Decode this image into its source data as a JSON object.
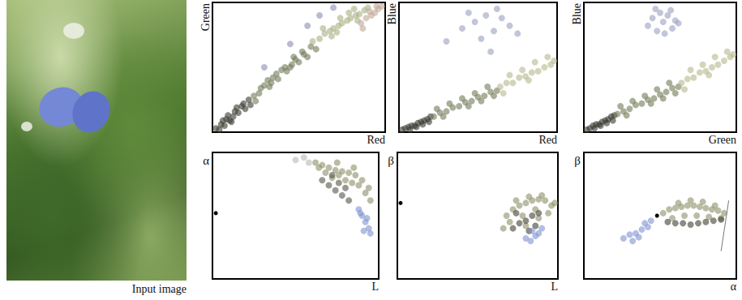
{
  "image": {
    "caption": "Input image"
  },
  "chart_data": [
    {
      "type": "scatter",
      "x_label": "Red",
      "y_label": "Green",
      "xlim": [
        0,
        100
      ],
      "ylim": [
        0,
        100
      ],
      "tick_labels": false,
      "grid": false,
      "series": [
        {
          "color": "#3b3b32",
          "x": [
            2,
            4,
            5,
            7,
            8,
            10,
            12,
            13,
            15,
            17,
            19,
            21,
            6,
            9,
            11,
            14,
            18,
            22
          ],
          "values": [
            3,
            2,
            6,
            5,
            10,
            9,
            12,
            16,
            15,
            20,
            18,
            25,
            9,
            13,
            8,
            19,
            22,
            21
          ]
        },
        {
          "color": "#6f7a55",
          "x": [
            24,
            27,
            30,
            33,
            35,
            38,
            40,
            43,
            46,
            48,
            50,
            53,
            55,
            28,
            32,
            37,
            42,
            47,
            52,
            57,
            60,
            25,
            34,
            45
          ],
          "values": [
            28,
            30,
            36,
            35,
            42,
            41,
            48,
            47,
            52,
            56,
            54,
            60,
            58,
            34,
            40,
            45,
            50,
            58,
            62,
            66,
            64,
            24,
            38,
            50
          ]
        },
        {
          "color": "#a9b084",
          "x": [
            58,
            62,
            65,
            68,
            70,
            73,
            75,
            78,
            80,
            83,
            85,
            88,
            64,
            69,
            74,
            79,
            84,
            90,
            72,
            82
          ],
          "values": [
            70,
            72,
            76,
            78,
            80,
            82,
            84,
            86,
            88,
            90,
            91,
            94,
            80,
            74,
            88,
            92,
            86,
            96,
            77,
            95
          ]
        },
        {
          "color": "#c2a696",
          "x": [
            86,
            89,
            92,
            94,
            96,
            91,
            95,
            98,
            87
          ],
          "values": [
            84,
            88,
            90,
            92,
            95,
            93,
            97,
            97,
            80
          ]
        },
        {
          "color": "#8a90b0",
          "x": [
            30,
            45,
            55,
            62,
            70
          ],
          "values": [
            50,
            68,
            82,
            90,
            96
          ]
        }
      ]
    },
    {
      "type": "scatter",
      "x_label": "Red",
      "y_label": "Blue",
      "xlim": [
        0,
        100
      ],
      "ylim": [
        0,
        100
      ],
      "tick_labels": false,
      "grid": false,
      "series": [
        {
          "color": "#3b3b32",
          "x": [
            2,
            4,
            6,
            8,
            10,
            12,
            14,
            16,
            18,
            20,
            7,
            11,
            15,
            19
          ],
          "values": [
            2,
            3,
            4,
            5,
            5,
            7,
            8,
            9,
            10,
            12,
            2,
            4,
            6,
            8
          ]
        },
        {
          "color": "#6f7a55",
          "x": [
            22,
            26,
            30,
            34,
            38,
            42,
            46,
            50,
            54,
            58,
            62,
            24,
            32,
            40,
            48,
            56,
            28,
            44,
            52,
            60
          ],
          "values": [
            12,
            15,
            16,
            19,
            20,
            23,
            24,
            27,
            28,
            31,
            32,
            18,
            22,
            26,
            30,
            35,
            12,
            20,
            24,
            28
          ]
        },
        {
          "color": "#b5b88c",
          "x": [
            64,
            68,
            72,
            76,
            80,
            84,
            88,
            92,
            96,
            70,
            78,
            86,
            94,
            66,
            82,
            98
          ],
          "values": [
            35,
            38,
            38,
            42,
            43,
            46,
            47,
            50,
            52,
            44,
            48,
            54,
            58,
            30,
            40,
            55
          ]
        },
        {
          "color": "#9aa0c0",
          "x": [
            30,
            40,
            48,
            55,
            60,
            65,
            70,
            52,
            44,
            62,
            75,
            58
          ],
          "values": [
            70,
            80,
            85,
            90,
            78,
            88,
            82,
            72,
            92,
            95,
            76,
            62
          ]
        }
      ]
    },
    {
      "type": "scatter",
      "x_label": "Green",
      "y_label": "Blue",
      "xlim": [
        0,
        100
      ],
      "ylim": [
        0,
        100
      ],
      "tick_labels": false,
      "grid": false,
      "series": [
        {
          "color": "#3b3b32",
          "x": [
            2,
            4,
            6,
            8,
            10,
            12,
            14,
            16,
            18,
            20,
            7,
            11,
            15,
            19
          ],
          "values": [
            2,
            3,
            5,
            6,
            6,
            8,
            9,
            10,
            12,
            13,
            3,
            5,
            7,
            9
          ]
        },
        {
          "color": "#6f7a55",
          "x": [
            22,
            26,
            30,
            34,
            38,
            42,
            46,
            50,
            54,
            58,
            62,
            24,
            32,
            40,
            48,
            56,
            28,
            44,
            52,
            60
          ],
          "values": [
            14,
            16,
            18,
            21,
            22,
            25,
            26,
            29,
            31,
            34,
            35,
            20,
            24,
            28,
            33,
            38,
            13,
            22,
            26,
            30
          ]
        },
        {
          "color": "#b5b88c",
          "x": [
            64,
            68,
            72,
            76,
            80,
            84,
            88,
            92,
            96,
            70,
            78,
            86,
            94,
            66,
            82,
            98
          ],
          "values": [
            38,
            41,
            42,
            46,
            47,
            50,
            52,
            55,
            58,
            48,
            52,
            58,
            62,
            33,
            44,
            60
          ]
        },
        {
          "color": "#9aa0c0",
          "x": [
            42,
            45,
            48,
            50,
            52,
            55,
            58,
            60,
            47,
            53,
            57,
            62
          ],
          "values": [
            82,
            88,
            78,
            92,
            85,
            90,
            80,
            86,
            95,
            76,
            94,
            84
          ]
        }
      ]
    },
    {
      "type": "scatter",
      "x_label": "L",
      "y_label": "α",
      "xlim": [
        0,
        100
      ],
      "ylim": [
        0,
        100
      ],
      "tick_labels": false,
      "grid": false,
      "series": [
        {
          "color": "#8c9068",
          "x": [
            62,
            66,
            70,
            74,
            78,
            82,
            86,
            90,
            94,
            72,
            80,
            88,
            68,
            76,
            84,
            92,
            64,
            75,
            85,
            95
          ],
          "values": [
            92,
            90,
            88,
            86,
            85,
            84,
            82,
            78,
            72,
            80,
            78,
            74,
            84,
            82,
            76,
            68,
            88,
            92,
            88,
            62
          ]
        },
        {
          "color": "#555548",
          "x": [
            66,
            70,
            74,
            78,
            82,
            72,
            76,
            80
          ],
          "values": [
            78,
            74,
            70,
            66,
            62,
            82,
            76,
            72
          ]
        },
        {
          "color": "#7f93d0",
          "x": [
            88,
            90,
            92,
            94,
            91,
            93,
            89,
            95
          ],
          "values": [
            55,
            50,
            45,
            40,
            38,
            48,
            52,
            36
          ]
        },
        {
          "color": "#b8b8b0",
          "x": [
            50,
            55,
            58
          ],
          "values": [
            94,
            96,
            92
          ]
        },
        {
          "color": "#000000",
          "x": [
            2
          ],
          "values": [
            52
          ]
        }
      ]
    },
    {
      "type": "scatter",
      "x_label": "L",
      "y_label": "β",
      "xlim": [
        0,
        100
      ],
      "ylim": [
        0,
        100
      ],
      "tick_labels": false,
      "grid": false,
      "series": [
        {
          "color": "#8c9068",
          "x": [
            68,
            72,
            76,
            80,
            84,
            88,
            92,
            96,
            70,
            78,
            86,
            94,
            74,
            82,
            90,
            98,
            66,
            80,
            88
          ],
          "values": [
            50,
            55,
            58,
            60,
            62,
            63,
            62,
            58,
            45,
            50,
            55,
            52,
            62,
            65,
            66,
            60,
            40,
            42,
            48
          ]
        },
        {
          "color": "#3f3f34",
          "x": [
            72,
            76,
            80,
            84,
            88,
            74,
            82,
            86
          ],
          "values": [
            40,
            44,
            46,
            50,
            52,
            52,
            38,
            42
          ]
        },
        {
          "color": "#7f93d0",
          "x": [
            80,
            83,
            86,
            88,
            84,
            90
          ],
          "values": [
            32,
            30,
            34,
            36,
            38,
            40
          ]
        },
        {
          "color": "#000000",
          "x": [
            2
          ],
          "values": [
            60
          ]
        }
      ]
    },
    {
      "type": "scatter",
      "x_label": "α",
      "y_label": "β",
      "xlim": [
        0,
        100
      ],
      "ylim": [
        0,
        100
      ],
      "tick_labels": false,
      "grid": false,
      "series": [
        {
          "color": "#8c9068",
          "x": [
            52,
            56,
            60,
            64,
            68,
            72,
            76,
            80,
            84,
            88,
            92,
            58,
            66,
            74,
            82,
            90,
            62,
            70,
            78,
            86
          ],
          "values": [
            52,
            55,
            56,
            57,
            58,
            58,
            57,
            56,
            55,
            54,
            52,
            48,
            50,
            50,
            49,
            48,
            60,
            62,
            61,
            58
          ]
        },
        {
          "color": "#3f3f34",
          "x": [
            55,
            60,
            65,
            70,
            75,
            80,
            85,
            90
          ],
          "values": [
            45,
            44,
            44,
            43,
            44,
            45,
            46,
            47
          ]
        },
        {
          "color": "#7f93d0",
          "x": [
            26,
            30,
            34,
            38,
            42,
            32,
            36,
            40,
            44
          ],
          "values": [
            32,
            35,
            36,
            39,
            41,
            30,
            33,
            44,
            46
          ]
        },
        {
          "color": "#000000",
          "x": [
            48
          ],
          "values": [
            50
          ]
        },
        {
          "type": "line",
          "color": "#777777",
          "x": [
            90,
            91,
            92,
            93,
            94,
            95
          ],
          "values": [
            22,
            30,
            38,
            46,
            54,
            62
          ]
        }
      ]
    }
  ]
}
